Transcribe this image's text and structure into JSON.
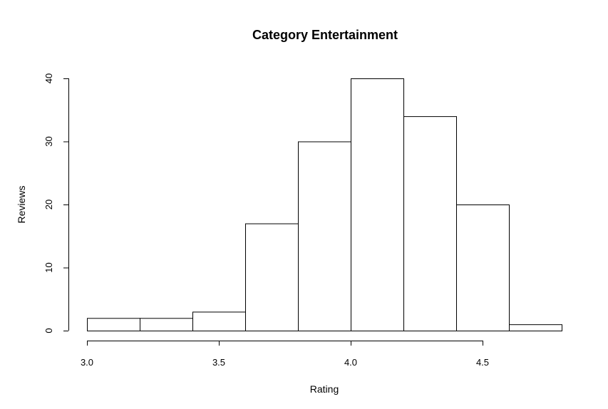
{
  "chart_data": {
    "type": "bar",
    "title": "Category Entertainment",
    "xlabel": "Rating",
    "ylabel": "Reviews",
    "bins": [
      {
        "start": 3.0,
        "end": 3.2,
        "count": 2
      },
      {
        "start": 3.2,
        "end": 3.4,
        "count": 2
      },
      {
        "start": 3.4,
        "end": 3.6,
        "count": 3
      },
      {
        "start": 3.6,
        "end": 3.8,
        "count": 17
      },
      {
        "start": 3.8,
        "end": 4.0,
        "count": 30
      },
      {
        "start": 4.0,
        "end": 4.2,
        "count": 40
      },
      {
        "start": 4.2,
        "end": 4.4,
        "count": 34
      },
      {
        "start": 4.4,
        "end": 4.6,
        "count": 20
      },
      {
        "start": 4.6,
        "end": 4.8,
        "count": 1
      }
    ],
    "xlim": [
      3.0,
      4.8
    ],
    "ylim": [
      0,
      40
    ],
    "x_ticks": [
      "3.0",
      "3.5",
      "4.0",
      "4.5"
    ],
    "y_ticks": [
      "0",
      "10",
      "20",
      "30",
      "40"
    ],
    "grid": false,
    "legend": "none"
  }
}
